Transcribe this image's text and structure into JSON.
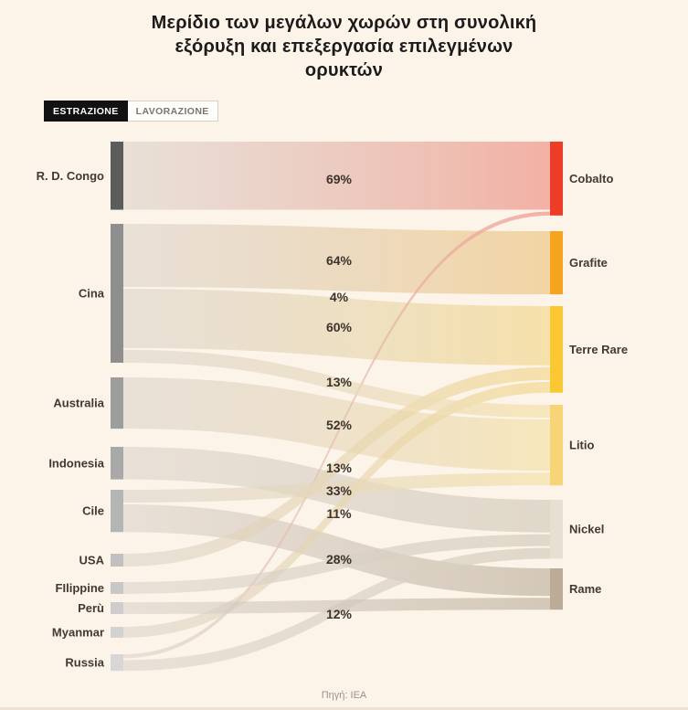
{
  "title_lines": [
    "Μερίδιο των μεγάλων χωρών στη συνολική",
    "εξόρυξη και επεξεργασία επιλεγμένων",
    "ορυκτών"
  ],
  "tabs": [
    {
      "label": "ESTRAZIONE",
      "active": true
    },
    {
      "label": "LAVORAZIONE",
      "active": false
    }
  ],
  "source_note": "Πηγή: IEA",
  "colors": {
    "background": "#fdf4e9",
    "title_text": "#1b1b1b",
    "tab_active_bg": "#121212",
    "tab_active_text": "#ffffff",
    "tab_inactive_text": "#7d756b",
    "node_label_text": "#3f3a34",
    "percent_label_text": "#3b332c",
    "source_text": "#9a938b"
  },
  "chart_data": {
    "type": "sankey",
    "unit": "%",
    "tab_shown": "ESTRAZIONE",
    "left_nodes": [
      {
        "id": "congo",
        "label": "R. D. Congo",
        "color": "#5c5c5c"
      },
      {
        "id": "cina",
        "label": "Cina",
        "color": "#8e8e8e"
      },
      {
        "id": "australia",
        "label": "Australia",
        "color": "#9d9d9d"
      },
      {
        "id": "indonesia",
        "label": "Indonesia",
        "color": "#a9a9a9"
      },
      {
        "id": "cile",
        "label": "Cile",
        "color": "#b5b5b5"
      },
      {
        "id": "usa",
        "label": "USA",
        "color": "#c0c0c0"
      },
      {
        "id": "filippine",
        "label": "FIlippine",
        "color": "#c7c7c7"
      },
      {
        "id": "peru",
        "label": "Perù",
        "color": "#cdcdcd"
      },
      {
        "id": "myanmar",
        "label": "Myanmar",
        "color": "#d2d2d2"
      },
      {
        "id": "russia",
        "label": "Russia",
        "color": "#d7d7d7"
      }
    ],
    "right_nodes": [
      {
        "id": "cobalto",
        "label": "Cobalto",
        "color": "#ee3d26",
        "flow_tint": "#f0a093"
      },
      {
        "id": "grafite",
        "label": "Grafite",
        "color": "#f6a41f",
        "flow_tint": "#f0cd92"
      },
      {
        "id": "terre_rare",
        "label": "Terre Rare",
        "color": "#f9c832",
        "flow_tint": "#f4dc9b"
      },
      {
        "id": "litio",
        "label": "Litio",
        "color": "#f8d478",
        "flow_tint": "#f5e3b0"
      },
      {
        "id": "nickel",
        "label": "Nickel",
        "color": "#e7e0d2",
        "flow_tint": "#d9d1c1"
      },
      {
        "id": "rame",
        "label": "Rame",
        "color": "#bcab97",
        "flow_tint": "#c9bdab"
      }
    ],
    "flows": [
      {
        "from": "congo",
        "to": "cobalto",
        "value": 69,
        "label": "69%"
      },
      {
        "from": "russia",
        "to": "cobalto",
        "value": 4,
        "label": "4%"
      },
      {
        "from": "cina",
        "to": "grafite",
        "value": 64,
        "label": "64%"
      },
      {
        "from": "cina",
        "to": "terre_rare",
        "value": 60,
        "label": "60%"
      },
      {
        "from": "usa",
        "to": "terre_rare",
        "value": 13,
        "label": "13%"
      },
      {
        "from": "myanmar",
        "to": "terre_rare",
        "value": 11,
        "label": "11%"
      },
      {
        "from": "cina",
        "to": "litio",
        "value": 13,
        "label": "13%"
      },
      {
        "from": "australia",
        "to": "litio",
        "value": 52,
        "label": "52%"
      },
      {
        "from": "cile",
        "to": "litio",
        "value": 13,
        "label": ""
      },
      {
        "from": "indonesia",
        "to": "nickel",
        "value": 33,
        "label": "33%"
      },
      {
        "from": "filippine",
        "to": "nickel",
        "value": 12,
        "label": ""
      },
      {
        "from": "russia",
        "to": "nickel",
        "value": 11,
        "label": ""
      },
      {
        "from": "cile",
        "to": "rame",
        "value": 28,
        "label": "28%"
      },
      {
        "from": "peru",
        "to": "rame",
        "value": 12,
        "label": "12%"
      }
    ]
  }
}
